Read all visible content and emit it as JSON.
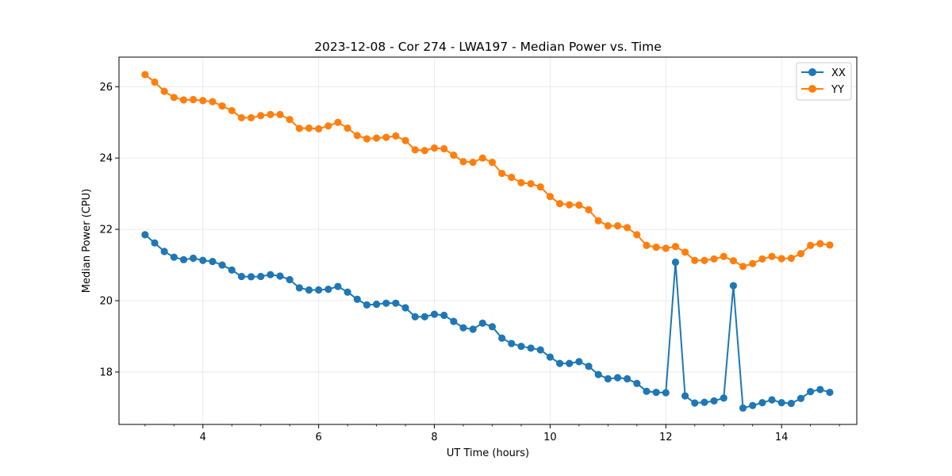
{
  "chart_data": {
    "type": "line",
    "title": "2023-12-08 - Cor 274 - LWA197 - Median Power vs. Time",
    "xlabel": "UT Time (hours)",
    "ylabel": "Median Power (CPU)",
    "xlim": [
      2.55,
      15.3
    ],
    "ylim": [
      16.53,
      26.83
    ],
    "xticks": [
      4,
      6,
      8,
      10,
      12,
      14
    ],
    "yticks": [
      18,
      20,
      22,
      24,
      26
    ],
    "grid": true,
    "legend_position": "top-right",
    "x": [
      3.0,
      3.167,
      3.333,
      3.5,
      3.667,
      3.833,
      4.0,
      4.167,
      4.333,
      4.5,
      4.667,
      4.833,
      5.0,
      5.167,
      5.333,
      5.5,
      5.667,
      5.833,
      6.0,
      6.167,
      6.333,
      6.5,
      6.667,
      6.833,
      7.0,
      7.167,
      7.333,
      7.5,
      7.667,
      7.833,
      8.0,
      8.167,
      8.333,
      8.5,
      8.667,
      8.833,
      9.0,
      9.167,
      9.333,
      9.5,
      9.667,
      9.833,
      10.0,
      10.167,
      10.333,
      10.5,
      10.667,
      10.833,
      11.0,
      11.167,
      11.333,
      11.5,
      11.667,
      11.833,
      12.0,
      12.167,
      12.333,
      12.5,
      12.667,
      12.833,
      13.0,
      13.167,
      13.333,
      13.5,
      13.667,
      13.833,
      14.0,
      14.167,
      14.333,
      14.5,
      14.667,
      14.833
    ],
    "series": [
      {
        "name": "XX",
        "color": "#1f77b4",
        "values": [
          21.85,
          21.62,
          21.38,
          21.22,
          21.15,
          21.19,
          21.13,
          21.1,
          21.0,
          20.86,
          20.68,
          20.67,
          20.68,
          20.73,
          20.69,
          20.59,
          20.36,
          20.3,
          20.3,
          20.32,
          20.4,
          20.24,
          20.04,
          19.88,
          19.9,
          19.93,
          19.93,
          19.8,
          19.55,
          19.55,
          19.62,
          19.59,
          19.42,
          19.24,
          19.2,
          19.37,
          19.27,
          18.95,
          18.8,
          18.72,
          18.67,
          18.62,
          18.42,
          18.24,
          18.24,
          18.29,
          18.16,
          17.93,
          17.81,
          17.84,
          17.81,
          17.68,
          17.46,
          17.43,
          17.42,
          21.08,
          17.33,
          17.13,
          17.15,
          17.19,
          17.27,
          20.42,
          16.99,
          17.06,
          17.14,
          17.22,
          17.14,
          17.12,
          17.26,
          17.45,
          17.51,
          17.43
        ]
      },
      {
        "name": "YY",
        "color": "#ff7f0e",
        "values": [
          26.34,
          26.13,
          25.87,
          25.7,
          25.63,
          25.64,
          25.61,
          25.58,
          25.46,
          25.33,
          25.13,
          25.13,
          25.19,
          25.22,
          25.22,
          25.08,
          24.83,
          24.84,
          24.82,
          24.9,
          25.0,
          24.84,
          24.63,
          24.54,
          24.56,
          24.58,
          24.62,
          24.49,
          24.23,
          24.21,
          24.28,
          24.26,
          24.08,
          23.9,
          23.88,
          24.0,
          23.88,
          23.57,
          23.46,
          23.31,
          23.28,
          23.19,
          22.92,
          22.72,
          22.69,
          22.68,
          22.55,
          22.24,
          22.1,
          22.1,
          22.05,
          21.85,
          21.55,
          21.5,
          21.47,
          21.52,
          21.36,
          21.13,
          21.13,
          21.17,
          21.24,
          21.12,
          20.96,
          21.04,
          21.17,
          21.24,
          21.18,
          21.19,
          21.32,
          21.55,
          21.6,
          21.56
        ]
      }
    ]
  }
}
